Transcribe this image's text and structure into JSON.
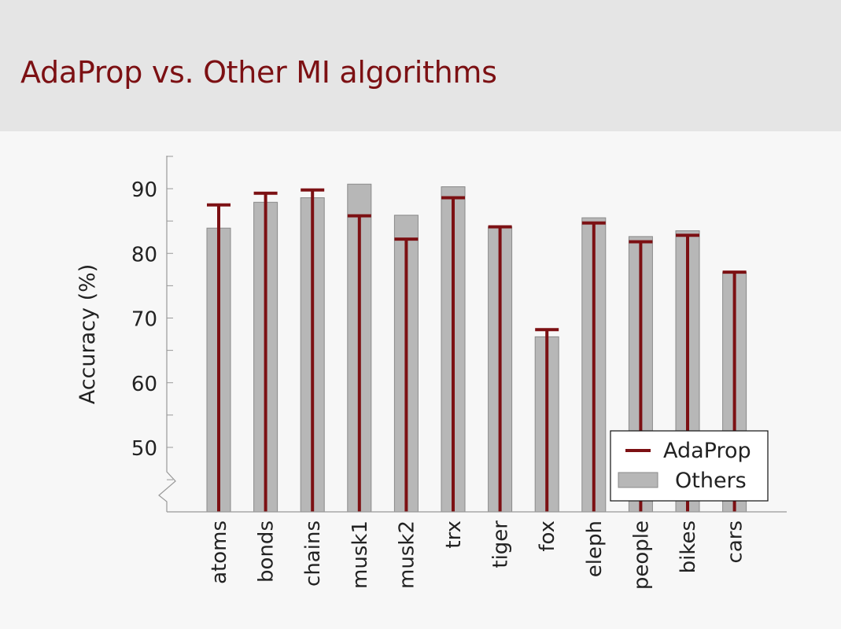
{
  "slide": {
    "title": "AdaProp vs. Other MI algorithms"
  },
  "colors": {
    "header_bg": "#e5e5e5",
    "body_bg": "#f7f7f7",
    "accent": "#7c1013",
    "others_bar": "#b7b7b7",
    "others_bar_edge": "#8a8a8a"
  },
  "chart_data": {
    "type": "bar",
    "ylabel": "Accuracy (%)",
    "xlabel": "",
    "ylim": [
      40,
      95
    ],
    "yticks": [
      50,
      60,
      70,
      80,
      90
    ],
    "axis_break": true,
    "grid": false,
    "legend_position": "bottom-right",
    "categories": [
      "atoms",
      "bonds",
      "chains",
      "musk1",
      "musk2",
      "trx",
      "tiger",
      "fox",
      "eleph",
      "people",
      "bikes",
      "cars"
    ],
    "series": [
      {
        "name": "AdaProp",
        "style": "line-marker",
        "color": "#7c1013",
        "values": [
          87.5,
          89.3,
          89.8,
          85.8,
          82.2,
          88.6,
          84.1,
          68.2,
          84.7,
          81.8,
          82.8,
          77.1
        ]
      },
      {
        "name": "Others",
        "style": "bar",
        "color": "#b7b7b7",
        "values": [
          83.9,
          87.9,
          88.6,
          90.7,
          85.9,
          90.3,
          84.1,
          67.1,
          85.5,
          82.6,
          83.5,
          77.1
        ]
      }
    ]
  }
}
